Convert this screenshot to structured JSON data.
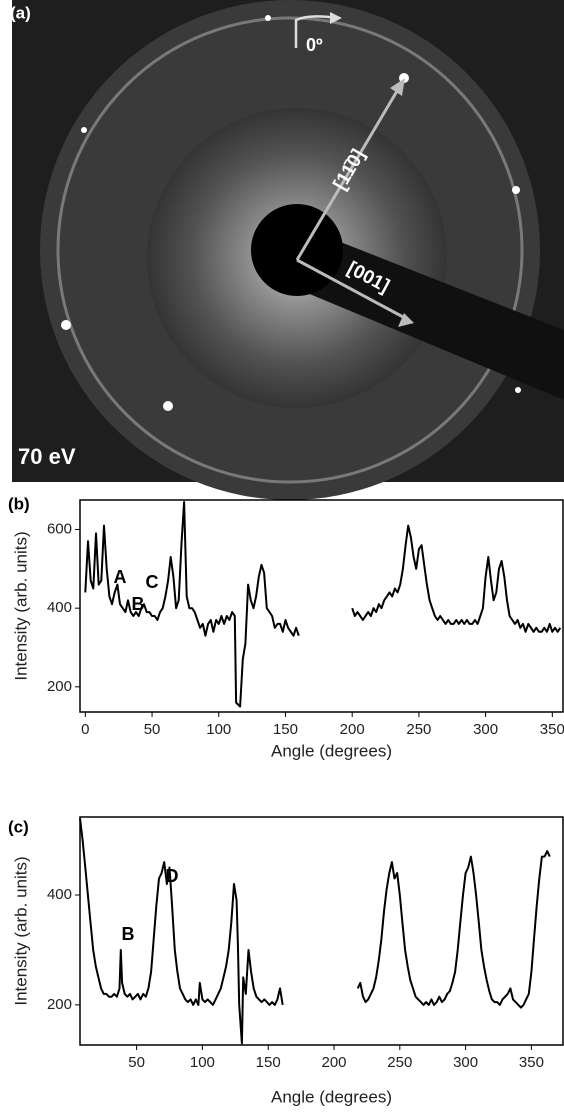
{
  "image_panel": {
    "label": "(a)",
    "rotation_label": "0º",
    "direction_1": "[11̄0]",
    "direction_2": "[001]",
    "energy": "70 eV"
  },
  "chart_data": [
    {
      "type": "line",
      "panel_label": "(b)",
      "xlabel": "Angle (degrees)",
      "ylabel": "Intensity (arb. units)",
      "color": "#000000",
      "xlim": [
        -4,
        358
      ],
      "ylim": [
        136,
        675
      ],
      "xticks": [
        0,
        50,
        100,
        150,
        200,
        250,
        300,
        350
      ],
      "yticks": [
        200,
        400,
        600
      ],
      "annotations": [
        "A",
        "B",
        "C"
      ],
      "x": [
        0,
        2,
        4,
        6,
        8,
        10,
        12,
        14,
        16,
        18,
        20,
        22,
        24,
        26,
        28,
        30,
        32,
        34,
        36,
        38,
        40,
        42,
        44,
        46,
        48,
        50,
        52,
        54,
        56,
        58,
        60,
        62,
        64,
        66,
        68,
        70,
        72,
        74,
        76,
        78,
        80,
        82,
        84,
        86,
        88,
        90,
        92,
        94,
        96,
        98,
        100,
        102,
        104,
        106,
        108,
        110,
        112,
        113,
        116,
        118,
        120,
        122,
        124,
        126,
        128,
        130,
        132,
        134,
        136,
        138,
        140,
        142,
        144,
        146,
        148,
        150,
        152,
        154,
        156,
        158,
        160,
        180,
        200,
        202,
        204,
        206,
        208,
        210,
        212,
        214,
        216,
        218,
        220,
        222,
        224,
        226,
        228,
        230,
        232,
        234,
        236,
        238,
        240,
        242,
        244,
        246,
        248,
        250,
        252,
        254,
        256,
        258,
        260,
        262,
        264,
        266,
        268,
        270,
        272,
        274,
        276,
        278,
        280,
        282,
        284,
        286,
        288,
        290,
        292,
        294,
        296,
        298,
        300,
        302,
        304,
        306,
        308,
        310,
        312,
        314,
        316,
        318,
        320,
        322,
        324,
        326,
        328,
        330,
        332,
        334,
        336,
        338,
        340,
        342,
        344,
        346,
        348,
        350,
        352,
        354,
        356
      ],
      "values": [
        440,
        570,
        470,
        450,
        590,
        460,
        470,
        610,
        500,
        430,
        410,
        440,
        460,
        410,
        400,
        390,
        420,
        390,
        380,
        390,
        380,
        400,
        410,
        390,
        390,
        380,
        380,
        370,
        390,
        400,
        430,
        470,
        530,
        480,
        400,
        420,
        560,
        670,
        430,
        400,
        400,
        390,
        370,
        350,
        360,
        330,
        360,
        370,
        340,
        370,
        360,
        380,
        360,
        380,
        370,
        390,
        380,
        160,
        150,
        270,
        310,
        460,
        420,
        400,
        430,
        480,
        510,
        490,
        400,
        390,
        380,
        350,
        360,
        360,
        340,
        370,
        350,
        340,
        330,
        350,
        330,
        null,
        400,
        380,
        390,
        380,
        370,
        380,
        390,
        380,
        400,
        390,
        410,
        400,
        420,
        430,
        440,
        430,
        450,
        440,
        460,
        500,
        560,
        610,
        580,
        530,
        500,
        550,
        560,
        510,
        460,
        420,
        400,
        380,
        370,
        380,
        370,
        360,
        370,
        360,
        360,
        370,
        360,
        370,
        360,
        370,
        360,
        360,
        370,
        360,
        380,
        400,
        480,
        530,
        470,
        420,
        440,
        500,
        520,
        480,
        420,
        380,
        370,
        360,
        370,
        350,
        360,
        340,
        360,
        350,
        340,
        350,
        340,
        340,
        350,
        340,
        360,
        340,
        350,
        340,
        350
      ]
    },
    {
      "type": "line",
      "panel_label": "(c)",
      "xlabel": "Angle (degrees)",
      "ylabel": "Intensity (arb. units)",
      "color": "#000000",
      "xlim": [
        7,
        374
      ],
      "ylim": [
        127,
        542
      ],
      "xticks": [
        50,
        100,
        150,
        200,
        250,
        300,
        350
      ],
      "yticks": [
        200,
        400
      ],
      "annotations": [
        "B",
        "D"
      ],
      "x": [
        7,
        9,
        11,
        13,
        15,
        17,
        19,
        21,
        23,
        25,
        27,
        29,
        31,
        33,
        35,
        37,
        38,
        39,
        41,
        43,
        45,
        47,
        49,
        51,
        53,
        55,
        57,
        59,
        61,
        63,
        65,
        67,
        69,
        71,
        73,
        75,
        77,
        79,
        81,
        83,
        85,
        87,
        89,
        91,
        93,
        95,
        97,
        98,
        100,
        102,
        104,
        106,
        108,
        110,
        112,
        114,
        116,
        118,
        120,
        122,
        124,
        126,
        127,
        128,
        130,
        131,
        133,
        135,
        137,
        139,
        141,
        143,
        145,
        147,
        149,
        151,
        153,
        155,
        157,
        159,
        161,
        190,
        218,
        220,
        222,
        224,
        226,
        228,
        230,
        232,
        234,
        236,
        238,
        240,
        242,
        244,
        246,
        248,
        250,
        252,
        254,
        256,
        258,
        260,
        262,
        264,
        266,
        268,
        270,
        272,
        274,
        276,
        278,
        280,
        282,
        284,
        286,
        288,
        290,
        292,
        294,
        296,
        298,
        300,
        302,
        304,
        306,
        308,
        310,
        312,
        314,
        316,
        318,
        320,
        322,
        324,
        326,
        328,
        330,
        332,
        334,
        336,
        338,
        340,
        342,
        344,
        346,
        348,
        350,
        352,
        354,
        356,
        358,
        360,
        362,
        364
      ],
      "values": [
        540,
        500,
        450,
        400,
        350,
        300,
        270,
        250,
        230,
        220,
        220,
        215,
        215,
        220,
        215,
        230,
        300,
        240,
        220,
        215,
        220,
        210,
        215,
        220,
        210,
        220,
        215,
        230,
        260,
        320,
        380,
        430,
        440,
        460,
        420,
        450,
        380,
        300,
        260,
        230,
        220,
        210,
        205,
        210,
        200,
        210,
        200,
        240,
        210,
        205,
        210,
        205,
        200,
        210,
        220,
        230,
        250,
        270,
        300,
        350,
        420,
        390,
        310,
        200,
        130,
        250,
        220,
        300,
        260,
        230,
        215,
        210,
        205,
        210,
        205,
        200,
        205,
        200,
        210,
        230,
        200,
        null,
        230,
        240,
        215,
        205,
        210,
        220,
        230,
        250,
        280,
        320,
        370,
        410,
        440,
        460,
        430,
        440,
        400,
        350,
        300,
        270,
        245,
        230,
        215,
        210,
        205,
        200,
        205,
        200,
        210,
        200,
        205,
        215,
        205,
        210,
        220,
        225,
        240,
        260,
        300,
        350,
        400,
        440,
        450,
        470,
        440,
        400,
        350,
        300,
        270,
        245,
        225,
        210,
        205,
        205,
        200,
        210,
        215,
        220,
        230,
        210,
        205,
        200,
        195,
        200,
        210,
        220,
        260,
        320,
        380,
        430,
        470,
        470,
        480,
        470
      ]
    }
  ]
}
